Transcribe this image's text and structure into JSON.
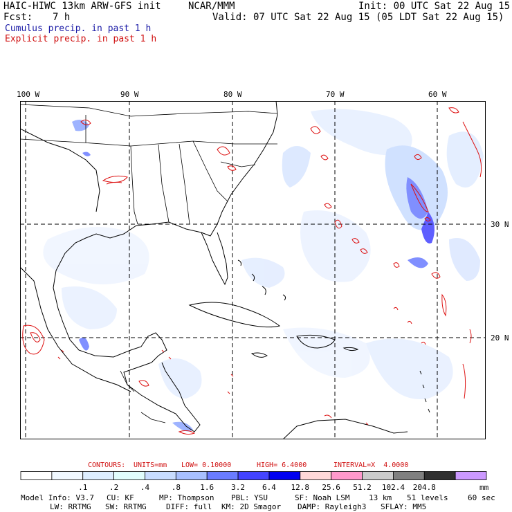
{
  "header": {
    "model": "HAIC-HIWC 13km ARW-GFS init",
    "org": "NCAR/MMM",
    "init": "Init: 00 UTC Sat 22 Aug 15",
    "fcst_label": "Fcst:",
    "fcst_value": "7 h",
    "valid": "Valid: 07 UTC Sat 22 Aug 15 (05 LDT Sat 22 Aug 15)",
    "cumulus": "Cumulus precip. in past 1 h",
    "explicit": "Explicit precip. in past 1 h"
  },
  "map": {
    "lon_labels": [
      "100 W",
      "90 W",
      "80 W",
      "70 W",
      "60 W"
    ],
    "lat_labels": [
      "30 N",
      "20 N"
    ]
  },
  "contours": {
    "label": "CONTOURS:",
    "units": "UNITS=mm",
    "low": "LOW= 0.10000",
    "high": "HIGH= 6.4000",
    "interval": "INTERVAL=X  4.0000"
  },
  "colorbar": {
    "ticks": [
      ".1",
      ".2",
      ".4",
      ".8",
      "1.6",
      "3.2",
      "6.4",
      "12.8",
      "25.6",
      "51.2",
      "102.4",
      "204.8"
    ],
    "unit": "mm",
    "colors": [
      "#ffffff",
      "#f0f8ff",
      "#ddeeff",
      "#e0fcfc",
      "#c8dcff",
      "#a8c0ff",
      "#6a7cff",
      "#4444ff",
      "#0000f0",
      "#ffd8d8",
      "#ff99cc",
      "#cccccc",
      "#808080",
      "#303030",
      "#cc99ff"
    ]
  },
  "footer": {
    "line1": [
      "Model Info: V3.7",
      "CU: KF",
      "MP: Thompson",
      "PBL: YSU",
      "SF: Noah LSM",
      "13 km",
      "51 levels",
      "60 sec"
    ],
    "line2": [
      "LW: RRTMG",
      "SW: RRTMG",
      "DIFF: full",
      "KM: 2D Smagor",
      "DAMP: Rayleigh3",
      "SFLAY: MM5"
    ]
  }
}
